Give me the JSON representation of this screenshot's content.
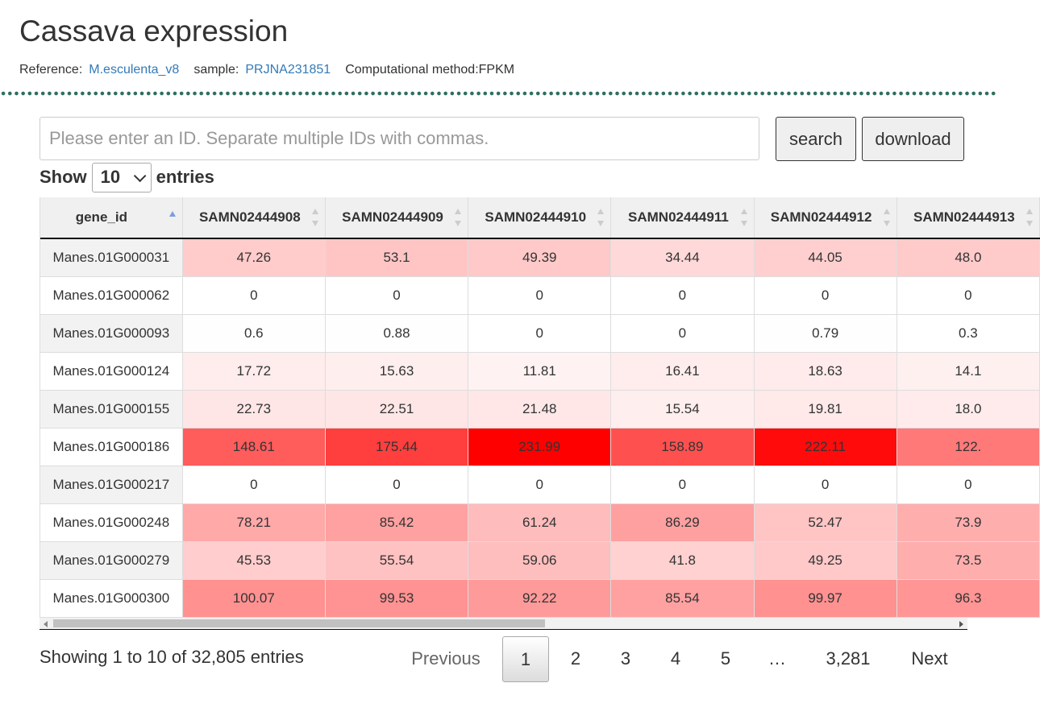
{
  "title": "Cassava expression",
  "meta": {
    "reference_label": "Reference:",
    "reference_value": "M.esculenta_v8",
    "sample_label": "sample:",
    "sample_value": "PRJNA231851",
    "method": "Computational method:FPKM"
  },
  "search": {
    "placeholder": "Please enter an ID. Separate multiple IDs with commas.",
    "value": "",
    "search_label": "search",
    "download_label": "download"
  },
  "length": {
    "show_label": "Show",
    "selected": "10",
    "entries_label": "entries"
  },
  "heat_color": "#ff0000",
  "heat_max": 231.99,
  "table": {
    "columns": [
      "gene_id",
      "SAMN02444908",
      "SAMN02444909",
      "SAMN02444910",
      "SAMN02444911",
      "SAMN02444912",
      "SAMN02444913"
    ],
    "sorted_column": "gene_id",
    "sort_direction": "asc",
    "rows": [
      {
        "gene_id": "Manes.01G000031",
        "values": [
          "47.26",
          "53.1",
          "49.39",
          "34.44",
          "44.05",
          "48.0"
        ]
      },
      {
        "gene_id": "Manes.01G000062",
        "values": [
          "0",
          "0",
          "0",
          "0",
          "0",
          "0"
        ]
      },
      {
        "gene_id": "Manes.01G000093",
        "values": [
          "0.6",
          "0.88",
          "0",
          "0",
          "0.79",
          "0.3"
        ]
      },
      {
        "gene_id": "Manes.01G000124",
        "values": [
          "17.72",
          "15.63",
          "11.81",
          "16.41",
          "18.63",
          "14.1"
        ]
      },
      {
        "gene_id": "Manes.01G000155",
        "values": [
          "22.73",
          "22.51",
          "21.48",
          "15.54",
          "19.81",
          "18.0"
        ]
      },
      {
        "gene_id": "Manes.01G000186",
        "values": [
          "148.61",
          "175.44",
          "231.99",
          "158.89",
          "222.11",
          "122."
        ]
      },
      {
        "gene_id": "Manes.01G000217",
        "values": [
          "0",
          "0",
          "0",
          "0",
          "0",
          "0"
        ]
      },
      {
        "gene_id": "Manes.01G000248",
        "values": [
          "78.21",
          "85.42",
          "61.24",
          "86.29",
          "52.47",
          "73.9"
        ]
      },
      {
        "gene_id": "Manes.01G000279",
        "values": [
          "45.53",
          "55.54",
          "59.06",
          "41.8",
          "49.25",
          "73.5"
        ]
      },
      {
        "gene_id": "Manes.01G000300",
        "values": [
          "100.07",
          "99.53",
          "92.22",
          "85.54",
          "99.97",
          "96.3"
        ]
      }
    ]
  },
  "info": "Showing 1 to 10 of 32,805 entries",
  "pagination": {
    "previous": "Previous",
    "pages": [
      "1",
      "2",
      "3",
      "4",
      "5",
      "…",
      "3,281"
    ],
    "current": "1",
    "next": "Next"
  }
}
